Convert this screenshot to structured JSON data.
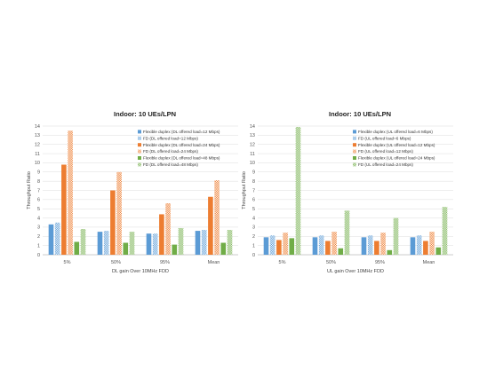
{
  "colors": {
    "blue": "#5b9bd5",
    "orange": "#ed7d31",
    "green": "#70ad47"
  },
  "chart_data": [
    {
      "type": "bar",
      "title": "Indoor: 10 UEs/LPN",
      "xlabel": "DL gain Over 10MHz FDD",
      "ylabel": "Throughput Ratio",
      "ylim": [
        0,
        14
      ],
      "yticks": [
        0,
        1,
        2,
        3,
        4,
        5,
        6,
        7,
        8,
        9,
        10,
        11,
        12,
        13,
        14
      ],
      "grid": true,
      "legend_position": "top-right",
      "categories": [
        "5%",
        "50%",
        "95%",
        "Mean"
      ],
      "series": [
        {
          "name": "Flexible duplex (DL offered load=12 Mbps)",
          "color": "blue",
          "pattern": "solid",
          "values": [
            3.3,
            2.5,
            2.3,
            2.6
          ]
        },
        {
          "name": "FD (DL offered load=12 Mbps)",
          "color": "blue",
          "pattern": "checker",
          "values": [
            3.5,
            2.6,
            2.3,
            2.7
          ]
        },
        {
          "name": "Flexible duplex (DL offered load=24 Mbps)",
          "color": "orange",
          "pattern": "solid",
          "values": [
            9.8,
            7.0,
            4.4,
            6.3
          ]
        },
        {
          "name": "FD (DL offered load=24 Mbps)",
          "color": "orange",
          "pattern": "checker",
          "values": [
            13.5,
            9.0,
            5.6,
            8.1
          ]
        },
        {
          "name": "Flexible duplex (DL offered load=48 Mbps)",
          "color": "green",
          "pattern": "solid",
          "values": [
            1.4,
            1.3,
            1.1,
            1.3
          ]
        },
        {
          "name": "FD (DL offered load=48 Mbps)",
          "color": "green",
          "pattern": "checker",
          "values": [
            2.8,
            2.5,
            2.9,
            2.7
          ]
        }
      ]
    },
    {
      "type": "bar",
      "title": "Indoor: 10 UEs/LPN",
      "xlabel": "UL gain Over 10MHz FDD",
      "ylabel": "Throughput Ratio",
      "ylim": [
        0,
        14
      ],
      "yticks": [
        0,
        1,
        2,
        3,
        4,
        5,
        6,
        7,
        8,
        9,
        10,
        11,
        12,
        13,
        14
      ],
      "grid": true,
      "legend_position": "top-right",
      "categories": [
        "5%",
        "50%",
        "95%",
        "Mean"
      ],
      "series": [
        {
          "name": "Flexible duplex (UL offered load=6 Mbps)",
          "color": "blue",
          "pattern": "solid",
          "values": [
            1.9,
            1.9,
            1.9,
            1.9
          ]
        },
        {
          "name": "FD (UL offered load=6 Mbps)",
          "color": "blue",
          "pattern": "checker",
          "values": [
            2.1,
            2.1,
            2.1,
            2.1
          ]
        },
        {
          "name": "Flexible duplex (UL offered load=12 Mbps)",
          "color": "orange",
          "pattern": "solid",
          "values": [
            1.6,
            1.5,
            1.5,
            1.5
          ]
        },
        {
          "name": "FD (UL offered load=12 Mbps)",
          "color": "orange",
          "pattern": "checker",
          "values": [
            2.4,
            2.5,
            2.4,
            2.5
          ]
        },
        {
          "name": "Flexible duplex (UL offered load=24 Mbps)",
          "color": "green",
          "pattern": "solid",
          "values": [
            1.8,
            0.7,
            0.5,
            0.8
          ]
        },
        {
          "name": "FD (UL offered load=24 Mbps)",
          "color": "green",
          "pattern": "checker",
          "values": [
            13.9,
            4.8,
            4.0,
            5.2
          ]
        }
      ]
    }
  ]
}
